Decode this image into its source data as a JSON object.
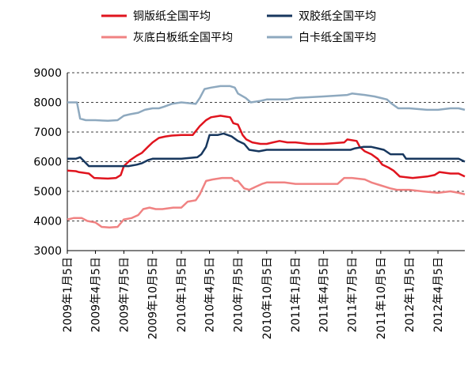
{
  "chart_data": {
    "type": "line",
    "title": "",
    "xlabel": "",
    "ylabel": "",
    "ylim": [
      3000,
      9000
    ],
    "yticks": [
      3000,
      4000,
      5000,
      6000,
      7000,
      8000,
      9000
    ],
    "grid": "horizontal dashed",
    "legend_position": "top",
    "x_range": [
      "2009-01-05",
      "2012-06-30"
    ],
    "x_tick_labels": [
      {
        "date": "2009-01-05",
        "label": "2009年1月5日"
      },
      {
        "date": "2009-04-05",
        "label": "2009年4月5日"
      },
      {
        "date": "2009-07-05",
        "label": "2009年7月5日"
      },
      {
        "date": "2009-10-05",
        "label": "2009年10月5日"
      },
      {
        "date": "2010-01-05",
        "label": "2010年1月5日"
      },
      {
        "date": "2010-04-05",
        "label": "2010年4月5日"
      },
      {
        "date": "2010-07-05",
        "label": "2010年7月5日"
      },
      {
        "date": "2010-10-05",
        "label": "2010年10月5日"
      },
      {
        "date": "2011-01-05",
        "label": "2011年1月5日"
      },
      {
        "date": "2011-04-05",
        "label": "2011年4月5日"
      },
      {
        "date": "2011-07-05",
        "label": "2011年7月5日"
      },
      {
        "date": "2011-10-05",
        "label": "2011年10月5日"
      },
      {
        "date": "2012-01-05",
        "label": "2012年1月5日"
      },
      {
        "date": "2012-04-05",
        "label": "2012年4月5日"
      }
    ],
    "series": [
      {
        "name": "铜版纸全国平均",
        "color": "#e0141e",
        "points": [
          [
            "2009-01-05",
            5700
          ],
          [
            "2009-02-01",
            5680
          ],
          [
            "2009-02-10",
            5650
          ],
          [
            "2009-03-15",
            5600
          ],
          [
            "2009-04-01",
            5450
          ],
          [
            "2009-05-15",
            5430
          ],
          [
            "2009-06-10",
            5450
          ],
          [
            "2009-06-25",
            5550
          ],
          [
            "2009-07-05",
            5850
          ],
          [
            "2009-07-25",
            6050
          ],
          [
            "2009-08-15",
            6200
          ],
          [
            "2009-09-01",
            6300
          ],
          [
            "2009-09-20",
            6500
          ],
          [
            "2009-10-05",
            6650
          ],
          [
            "2009-10-25",
            6800
          ],
          [
            "2009-11-15",
            6850
          ],
          [
            "2009-12-05",
            6880
          ],
          [
            "2010-01-05",
            6900
          ],
          [
            "2010-02-10",
            6900
          ],
          [
            "2010-03-05",
            7200
          ],
          [
            "2010-03-25",
            7400
          ],
          [
            "2010-04-10",
            7500
          ],
          [
            "2010-05-10",
            7550
          ],
          [
            "2010-06-10",
            7500
          ],
          [
            "2010-06-20",
            7300
          ],
          [
            "2010-07-05",
            7250
          ],
          [
            "2010-07-20",
            6900
          ],
          [
            "2010-08-01",
            6750
          ],
          [
            "2010-08-20",
            6650
          ],
          [
            "2010-09-15",
            6600
          ],
          [
            "2010-10-05",
            6600
          ],
          [
            "2010-10-25",
            6650
          ],
          [
            "2010-11-15",
            6700
          ],
          [
            "2010-12-10",
            6650
          ],
          [
            "2011-01-05",
            6650
          ],
          [
            "2011-02-15",
            6600
          ],
          [
            "2011-04-05",
            6600
          ],
          [
            "2011-06-10",
            6650
          ],
          [
            "2011-06-20",
            6750
          ],
          [
            "2011-07-20",
            6700
          ],
          [
            "2011-07-30",
            6500
          ],
          [
            "2011-08-15",
            6350
          ],
          [
            "2011-09-05",
            6250
          ],
          [
            "2011-09-25",
            6100
          ],
          [
            "2011-10-10",
            5900
          ],
          [
            "2011-10-30",
            5800
          ],
          [
            "2011-11-15",
            5700
          ],
          [
            "2011-12-05",
            5500
          ],
          [
            "2012-01-15",
            5450
          ],
          [
            "2012-03-01",
            5500
          ],
          [
            "2012-03-25",
            5550
          ],
          [
            "2012-04-10",
            5650
          ],
          [
            "2012-05-15",
            5600
          ],
          [
            "2012-06-10",
            5600
          ],
          [
            "2012-06-30",
            5500
          ]
        ]
      },
      {
        "name": "双胶纸全国平均",
        "color": "#17375e",
        "points": [
          [
            "2009-01-05",
            6100
          ],
          [
            "2009-02-01",
            6100
          ],
          [
            "2009-02-15",
            6150
          ],
          [
            "2009-03-01",
            6000
          ],
          [
            "2009-03-15",
            5850
          ],
          [
            "2009-04-05",
            5850
          ],
          [
            "2009-06-10",
            5850
          ],
          [
            "2009-07-20",
            5850
          ],
          [
            "2009-08-15",
            5900
          ],
          [
            "2009-09-01",
            5950
          ],
          [
            "2009-09-20",
            6050
          ],
          [
            "2009-10-05",
            6100
          ],
          [
            "2010-01-05",
            6100
          ],
          [
            "2010-02-25",
            6150
          ],
          [
            "2010-03-10",
            6250
          ],
          [
            "2010-03-25",
            6500
          ],
          [
            "2010-04-05",
            6900
          ],
          [
            "2010-05-01",
            6900
          ],
          [
            "2010-05-20",
            6950
          ],
          [
            "2010-06-15",
            6850
          ],
          [
            "2010-07-05",
            6700
          ],
          [
            "2010-07-25",
            6600
          ],
          [
            "2010-08-10",
            6400
          ],
          [
            "2010-09-10",
            6350
          ],
          [
            "2010-10-05",
            6400
          ],
          [
            "2010-12-01",
            6400
          ],
          [
            "2011-01-05",
            6400
          ],
          [
            "2011-04-05",
            6400
          ],
          [
            "2011-06-30",
            6400
          ],
          [
            "2011-07-15",
            6450
          ],
          [
            "2011-08-10",
            6500
          ],
          [
            "2011-09-05",
            6500
          ],
          [
            "2011-09-25",
            6450
          ],
          [
            "2011-10-15",
            6400
          ],
          [
            "2011-11-05",
            6250
          ],
          [
            "2011-12-15",
            6250
          ],
          [
            "2011-12-25",
            6100
          ],
          [
            "2012-02-01",
            6100
          ],
          [
            "2012-04-05",
            6100
          ],
          [
            "2012-06-10",
            6100
          ],
          [
            "2012-06-30",
            6000
          ]
        ]
      },
      {
        "name": "灰底白板纸全国平均",
        "color": "#f08282",
        "points": [
          [
            "2009-01-05",
            4050
          ],
          [
            "2009-01-25",
            4100
          ],
          [
            "2009-02-20",
            4100
          ],
          [
            "2009-03-10",
            4000
          ],
          [
            "2009-04-05",
            3950
          ],
          [
            "2009-04-25",
            3800
          ],
          [
            "2009-05-20",
            3780
          ],
          [
            "2009-06-15",
            3800
          ],
          [
            "2009-07-05",
            4050
          ],
          [
            "2009-07-30",
            4100
          ],
          [
            "2009-08-20",
            4200
          ],
          [
            "2009-09-05",
            4400
          ],
          [
            "2009-09-25",
            4450
          ],
          [
            "2009-10-15",
            4400
          ],
          [
            "2009-11-05",
            4400
          ],
          [
            "2009-12-10",
            4450
          ],
          [
            "2010-01-05",
            4450
          ],
          [
            "2010-01-25",
            4650
          ],
          [
            "2010-02-20",
            4700
          ],
          [
            "2010-03-05",
            4900
          ],
          [
            "2010-03-25",
            5350
          ],
          [
            "2010-04-15",
            5400
          ],
          [
            "2010-05-15",
            5450
          ],
          [
            "2010-06-15",
            5450
          ],
          [
            "2010-06-25",
            5350
          ],
          [
            "2010-07-05",
            5350
          ],
          [
            "2010-07-25",
            5100
          ],
          [
            "2010-08-10",
            5050
          ],
          [
            "2010-08-30",
            5150
          ],
          [
            "2010-09-20",
            5250
          ],
          [
            "2010-10-05",
            5300
          ],
          [
            "2010-12-01",
            5300
          ],
          [
            "2011-01-05",
            5250
          ],
          [
            "2011-04-05",
            5250
          ],
          [
            "2011-05-20",
            5250
          ],
          [
            "2011-06-10",
            5450
          ],
          [
            "2011-07-05",
            5450
          ],
          [
            "2011-08-15",
            5400
          ],
          [
            "2011-09-05",
            5300
          ],
          [
            "2011-10-05",
            5200
          ],
          [
            "2011-11-05",
            5100
          ],
          [
            "2011-11-25",
            5050
          ],
          [
            "2012-01-05",
            5050
          ],
          [
            "2012-02-15",
            5000
          ],
          [
            "2012-04-05",
            4950
          ],
          [
            "2012-05-15",
            5000
          ],
          [
            "2012-06-10",
            4950
          ],
          [
            "2012-06-30",
            4900
          ]
        ]
      },
      {
        "name": "白卡纸全国平均",
        "color": "#8ea9bf",
        "points": [
          [
            "2009-01-05",
            8000
          ],
          [
            "2009-02-05",
            8000
          ],
          [
            "2009-02-15",
            7450
          ],
          [
            "2009-03-05",
            7400
          ],
          [
            "2009-04-05",
            7400
          ],
          [
            "2009-05-15",
            7380
          ],
          [
            "2009-06-15",
            7400
          ],
          [
            "2009-07-05",
            7550
          ],
          [
            "2009-07-25",
            7600
          ],
          [
            "2009-08-20",
            7650
          ],
          [
            "2009-09-10",
            7750
          ],
          [
            "2009-10-05",
            7800
          ],
          [
            "2009-10-25",
            7800
          ],
          [
            "2009-11-10",
            7850
          ],
          [
            "2009-12-05",
            7950
          ],
          [
            "2010-01-05",
            8000
          ],
          [
            "2010-02-20",
            7950
          ],
          [
            "2010-03-05",
            8150
          ],
          [
            "2010-03-20",
            8450
          ],
          [
            "2010-04-10",
            8500
          ],
          [
            "2010-05-10",
            8550
          ],
          [
            "2010-06-10",
            8550
          ],
          [
            "2010-06-25",
            8500
          ],
          [
            "2010-07-05",
            8300
          ],
          [
            "2010-07-30",
            8150
          ],
          [
            "2010-08-15",
            8000
          ],
          [
            "2010-09-15",
            8050
          ],
          [
            "2010-10-05",
            8100
          ],
          [
            "2010-12-10",
            8100
          ],
          [
            "2011-01-05",
            8150
          ],
          [
            "2011-04-05",
            8200
          ],
          [
            "2011-06-20",
            8250
          ],
          [
            "2011-07-05",
            8300
          ],
          [
            "2011-08-15",
            8250
          ],
          [
            "2011-09-15",
            8200
          ],
          [
            "2011-10-05",
            8150
          ],
          [
            "2011-10-25",
            8100
          ],
          [
            "2011-11-10",
            7950
          ],
          [
            "2011-11-30",
            7800
          ],
          [
            "2012-01-05",
            7800
          ],
          [
            "2012-03-01",
            7750
          ],
          [
            "2012-04-05",
            7750
          ],
          [
            "2012-05-15",
            7800
          ],
          [
            "2012-06-10",
            7800
          ],
          [
            "2012-06-30",
            7750
          ]
        ]
      }
    ]
  }
}
